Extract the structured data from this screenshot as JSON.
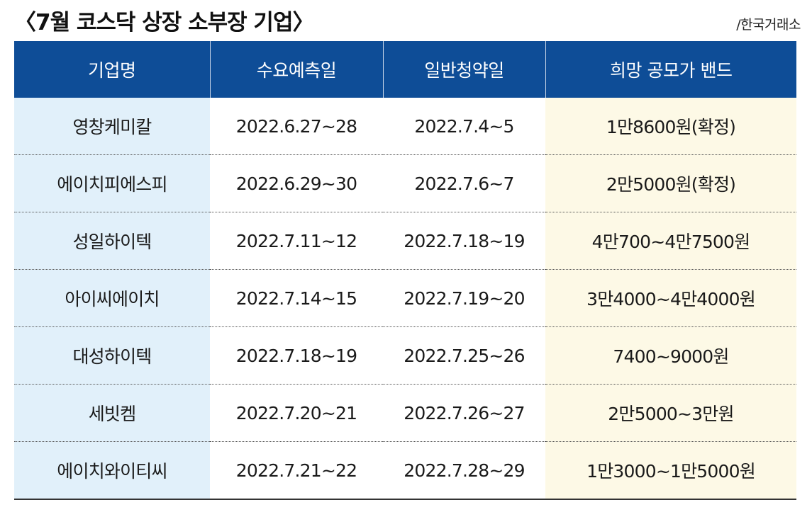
{
  "title": "〈7월 코스닥 상장 소부장 기업〉",
  "source": "/한국거래소",
  "table": {
    "headers": [
      "기업명",
      "수요예측일",
      "일반청약일",
      "희망 공모가 밴드"
    ],
    "rows": [
      [
        "영창케미칼",
        "2022.6.27~28",
        "2022.7.4~5",
        "1만8600원(확정)"
      ],
      [
        "에이치피에스피",
        "2022.6.29~30",
        "2022.7.6~7",
        "2만5000원(확정)"
      ],
      [
        "성일하이텍",
        "2022.7.11~12",
        "2022.7.18~19",
        "4만700~4만7500원"
      ],
      [
        "아이씨에이치",
        "2022.7.14~15",
        "2022.7.19~20",
        "3만4000~4만4000원"
      ],
      [
        "대성하이텍",
        "2022.7.18~19",
        "2022.7.25~26",
        "7400~9000원"
      ],
      [
        "세빗켐",
        "2022.7.20~21",
        "2022.7.26~27",
        "2만5000~3만원"
      ],
      [
        "에이치와이티씨",
        "2022.7.21~22",
        "2022.7.28~29",
        "1만3000~1만5000원"
      ]
    ]
  },
  "colors": {
    "header_bg": "#0e4d97",
    "company_col_bg": "#e1f0fa",
    "band_col_bg": "#fdf9e6"
  }
}
